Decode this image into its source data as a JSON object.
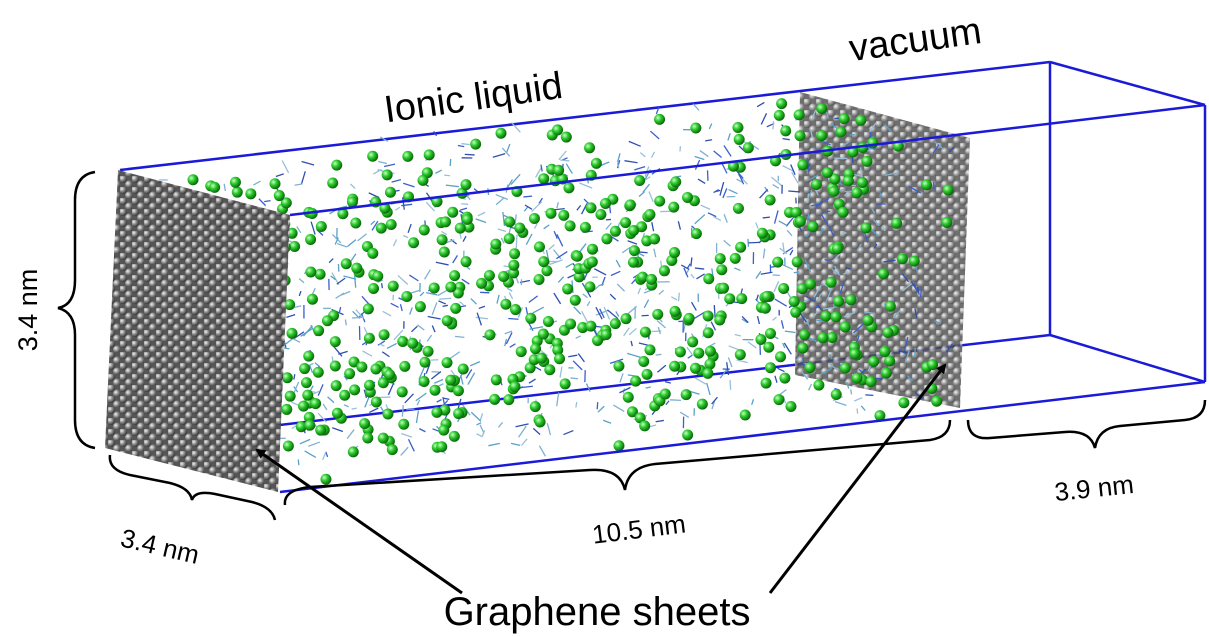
{
  "labels": {
    "ionic_liquid": "Ionic liquid",
    "vacuum": "vacuum",
    "height": "3.4 nm",
    "depth": "3.4 nm",
    "length": "10.5 nm",
    "vacuum_length": "3.9 nm",
    "graphene": "Graphene sheets"
  }
}
